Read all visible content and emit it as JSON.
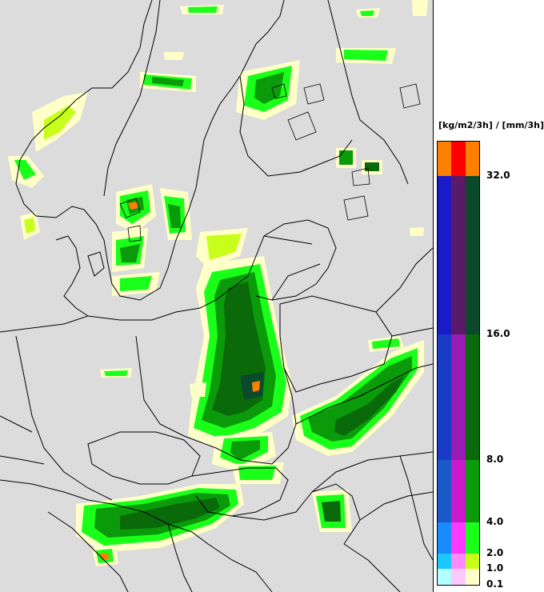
{
  "legend": {
    "unit_label": "[kg/m2/3h] / [mm/3h]",
    "tick_labels": [
      "32.0",
      "16.0",
      "8.0",
      "4.0",
      "2.0",
      "1.0",
      "0.1"
    ],
    "bands": [
      {
        "colors": [
          "#ff7f00",
          "#ff0000",
          "#ff7f00"
        ]
      },
      {
        "colors": [
          "#1a1ac8",
          "#5a1a6a",
          "#0a4a2a"
        ]
      },
      {
        "colors": [
          "#1a3ac8",
          "#9a1ab4",
          "#0a6a0a"
        ]
      },
      {
        "colors": [
          "#1a5ac8",
          "#c81ac8",
          "#0a9a0a"
        ]
      },
      {
        "colors": [
          "#1a8aff",
          "#ff3aff",
          "#1aff1a"
        ]
      },
      {
        "colors": [
          "#1ac8ff",
          "#ff8aff",
          "#c8ff1a"
        ]
      },
      {
        "colors": [
          "#b4ffff",
          "#ffc8ff",
          "#ffffc8"
        ]
      }
    ]
  },
  "map": {
    "background_color": "#dcdcdc",
    "border_color": "#000000"
  }
}
